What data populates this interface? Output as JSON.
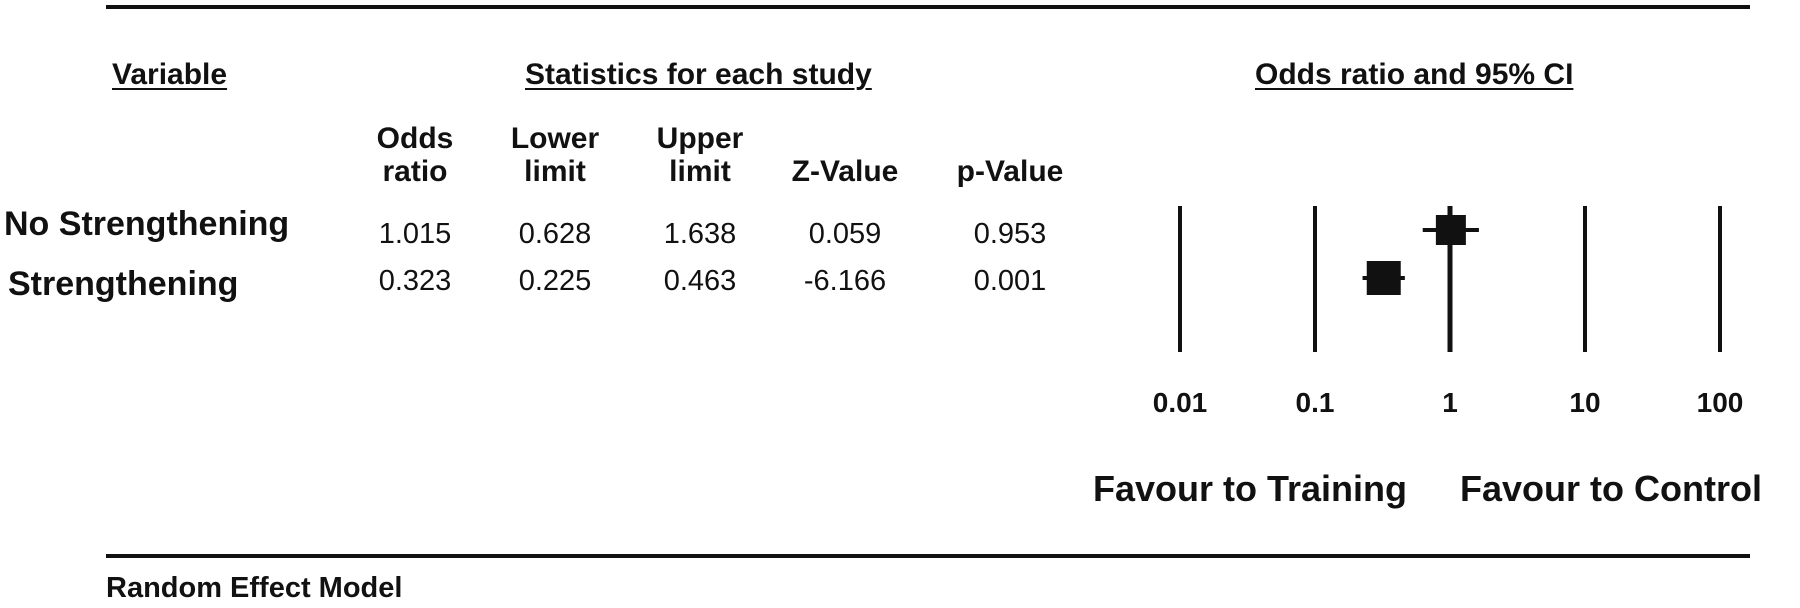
{
  "headers": {
    "variable": "Variable",
    "statistics": "Statistics for each study",
    "odds_ci": "Odds ratio and 95% CI"
  },
  "columns": [
    "Odds\nratio",
    "Lower\nlimit",
    "Upper\nlimit",
    "Z-Value",
    "p-Value"
  ],
  "rows": [
    {
      "label": "No Strengthening",
      "values": [
        "1.015",
        "0.628",
        "1.638",
        "0.059",
        "0.953"
      ]
    },
    {
      "label": "Strengthening",
      "values": [
        "0.323",
        "0.225",
        "0.463",
        "-6.166",
        "0.001"
      ]
    }
  ],
  "favour_left": "Favour to Training",
  "favour_right": "Favour to Control",
  "footer": "Random Effect Model",
  "chart_data": {
    "type": "scatter",
    "title": "Odds ratio and 95% CI",
    "x_scale": "log",
    "xlim": [
      0.01,
      100
    ],
    "ticks": [
      "0.01",
      "0.1",
      "1",
      "10",
      "100"
    ],
    "tick_values": [
      0.01,
      0.1,
      1,
      10,
      100
    ],
    "reference_line": 1,
    "categories": [
      "No Strengthening",
      "Strengthening"
    ],
    "series": [
      {
        "estimate": [
          1.015,
          0.323
        ],
        "lower": [
          0.628,
          0.225
        ],
        "upper": [
          1.638,
          0.463
        ]
      }
    ],
    "xlabel_left": "Favour to Training",
    "xlabel_right": "Favour to Control"
  }
}
